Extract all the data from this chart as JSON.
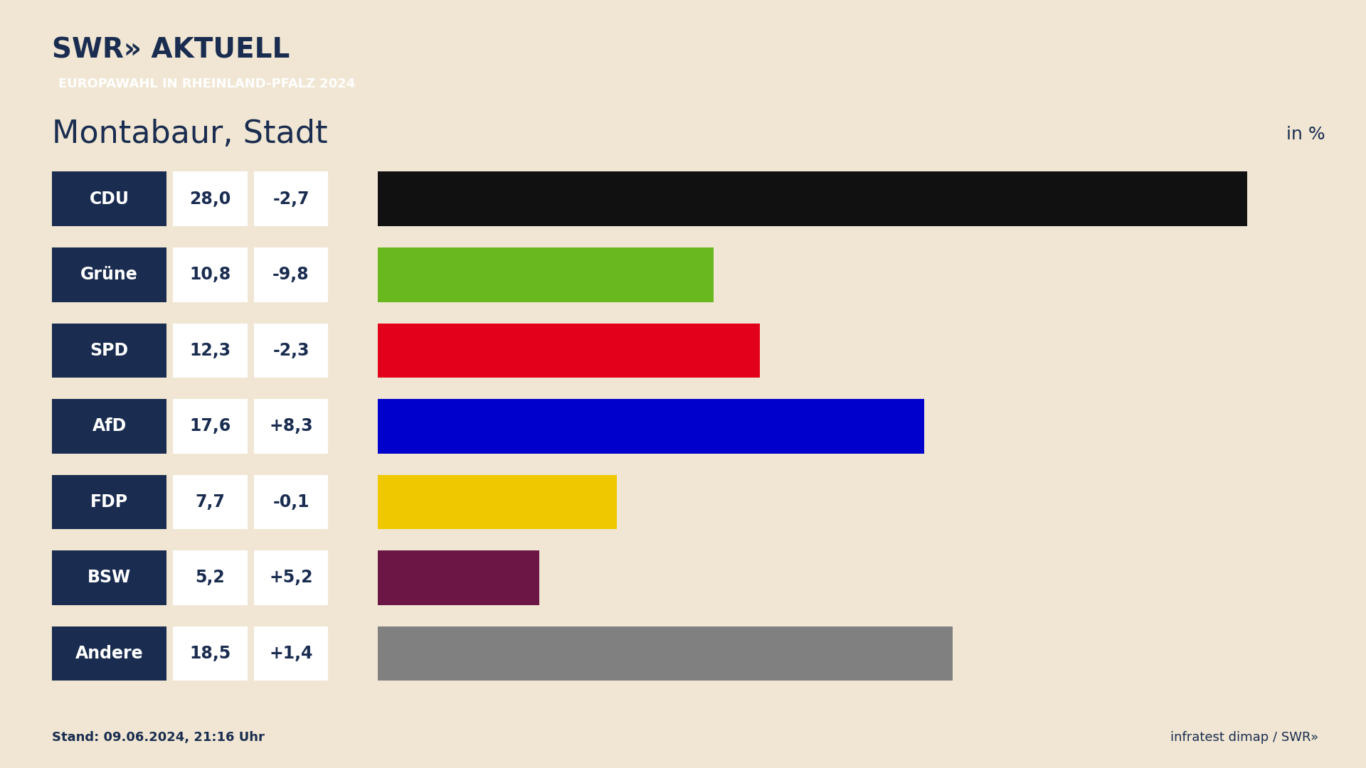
{
  "title": "Montabaur, Stadt",
  "subtitle": "EUROPAWAHL IN RHEINLAND-PFALZ 2024",
  "in_percent_label": "in %",
  "stand_label": "Stand: 09.06.2024, 21:16 Uhr",
  "source_label": "infratest dimap / SWR»",
  "swr_logo": "SWR» AKTUELL",
  "background_color": "#f0e6d3",
  "parties": [
    "CDU",
    "Grüne",
    "SPD",
    "AfD",
    "FDP",
    "BSW",
    "Andere"
  ],
  "values": [
    28.0,
    10.8,
    12.3,
    17.6,
    7.7,
    5.2,
    18.5
  ],
  "changes": [
    "-2,7",
    "-9,8",
    "-2,3",
    "+8,3",
    "-0,1",
    "+5,2",
    "+1,4"
  ],
  "bar_colors": [
    "#111111",
    "#6ab820",
    "#e2001a",
    "#0000cc",
    "#f0c800",
    "#6b1645",
    "#808080"
  ],
  "label_bg_color": "#1a2d50",
  "label_text_color": "#ffffff",
  "value_bg_color": "#ffffff",
  "value_text_color": "#1a2d50",
  "change_bg_color": "#ffffff",
  "change_text_color": "#1a2d50",
  "subtitle_bg_color": "#e8362a",
  "subtitle_text_color": "#ffffff",
  "title_color": "#1a2d50",
  "swr_color": "#1a2d50",
  "stand_color": "#1a2d50",
  "source_color": "#1a2d50",
  "max_value": 28.0
}
